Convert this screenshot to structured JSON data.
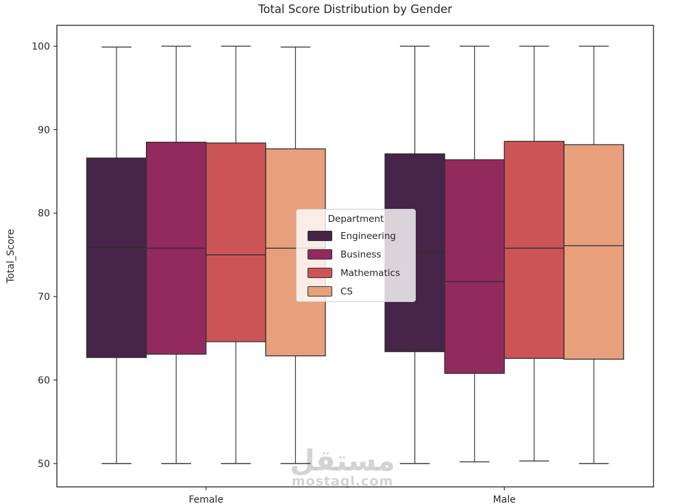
{
  "watermark": {
    "arabic": "مستقل",
    "url": "mostaql.com"
  },
  "chart_data": {
    "type": "boxplot",
    "title": "Total Score Distribution by Gender",
    "xlabel": "",
    "ylabel": "Total_Score",
    "categories": [
      "Female",
      "Male"
    ],
    "yticks": [
      50,
      60,
      70,
      80,
      90,
      100
    ],
    "ylim": [
      47.2,
      102.5
    ],
    "grid": false,
    "legend": {
      "title": "Department",
      "position": "center",
      "entries": [
        "Engineering",
        "Business",
        "Mathematics",
        "CS"
      ]
    },
    "palette": {
      "Engineering": "#462548",
      "Business": "#932a5e",
      "Mathematics": "#cd5456",
      "CS": "#e8a07c"
    },
    "groups": [
      {
        "category": "Female",
        "boxes": [
          {
            "department": "Engineering",
            "whislo": 50.0,
            "q1": 62.7,
            "med": 75.9,
            "q3": 86.6,
            "whishi": 99.9
          },
          {
            "department": "Business",
            "whislo": 50.0,
            "q1": 63.1,
            "med": 75.8,
            "q3": 88.5,
            "whishi": 100.0
          },
          {
            "department": "Mathematics",
            "whislo": 50.0,
            "q1": 64.6,
            "med": 75.0,
            "q3": 88.4,
            "whishi": 100.0
          },
          {
            "department": "CS",
            "whislo": 50.0,
            "q1": 62.9,
            "med": 75.8,
            "q3": 87.7,
            "whishi": 99.9
          }
        ]
      },
      {
        "category": "Male",
        "boxes": [
          {
            "department": "Engineering",
            "whislo": 50.0,
            "q1": 63.4,
            "med": 75.3,
            "q3": 87.1,
            "whishi": 100.0
          },
          {
            "department": "Business",
            "whislo": 50.2,
            "q1": 60.8,
            "med": 71.8,
            "q3": 86.4,
            "whishi": 100.0
          },
          {
            "department": "Mathematics",
            "whislo": 50.3,
            "q1": 62.6,
            "med": 75.8,
            "q3": 88.6,
            "whishi": 100.0
          },
          {
            "department": "CS",
            "whislo": 50.0,
            "q1": 62.5,
            "med": 76.1,
            "q3": 88.2,
            "whishi": 100.0
          }
        ]
      }
    ]
  }
}
